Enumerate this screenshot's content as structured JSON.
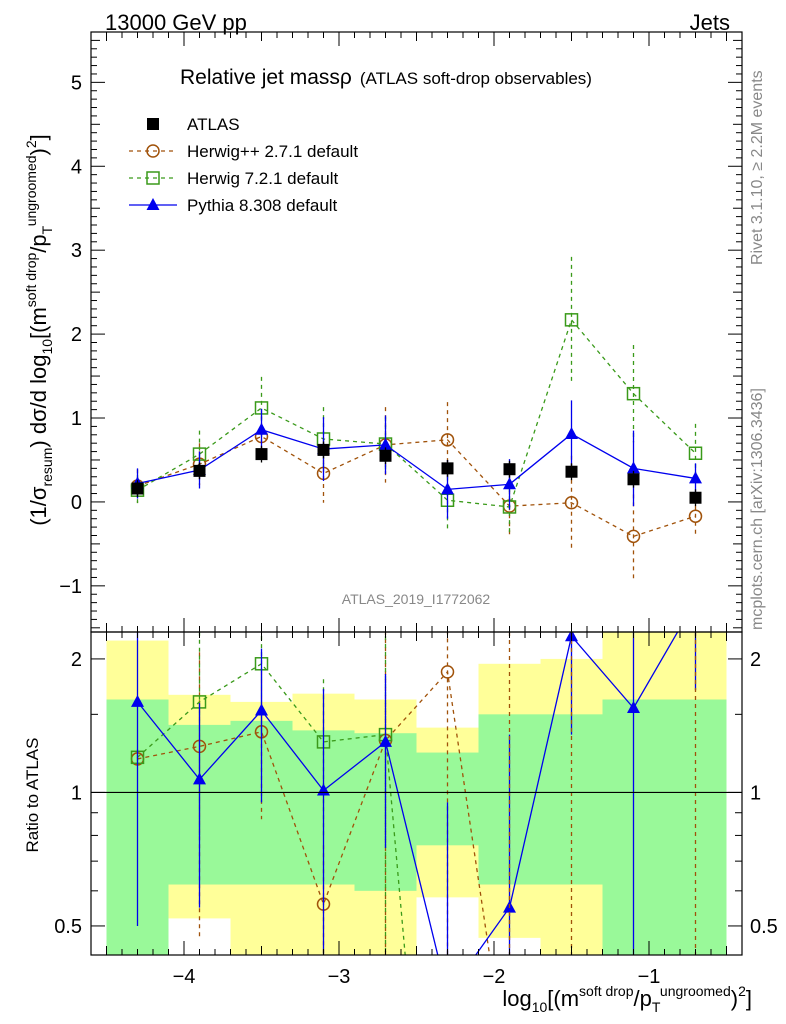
{
  "header": {
    "left": "13000 GeV pp",
    "right": "Jets"
  },
  "side_labels": {
    "rivet": "Rivet 3.1.10, ≥ 2.2M events",
    "mcplots": "mcplots.cern.ch [arXiv:1306.3436]"
  },
  "chart_data": {
    "type": "line",
    "title": "Relative jet massρ",
    "subtitle": "(ATLAS soft-drop observables)",
    "analysis_id": "ATLAS_2019_I1772062",
    "xlabel": {
      "base": "log",
      "sub1": "10",
      "mid": "[(m",
      "sup1": "soft drop",
      "mid2": "/p",
      "sub2": "T",
      "sup2": "ungroomed",
      "tail": ")",
      "sup3": "2",
      "end": "]"
    },
    "ylabel": {
      "pre": "(1/σ",
      "sub1": "resum",
      "mid": ") dσ/d log",
      "sub2": "10",
      "mid2": "[(m",
      "sup1": "soft drop",
      "mid3": "/p",
      "sub3": "T",
      "sup2": "ungroomed",
      "tail": ")",
      "sup3": "2",
      "end": "]"
    },
    "ratio_ylabel": "Ratio to ATLAS",
    "xlim": [
      -4.6,
      -0.4
    ],
    "ylim": [
      -1.55,
      5.6
    ],
    "ratio_ylim": [
      0.43,
      2.3
    ],
    "x_ticks": [
      -4,
      -3,
      -2,
      -1
    ],
    "x_tick_labels": [
      "−4",
      "−3",
      "−2",
      "−1"
    ],
    "y_ticks": [
      -1,
      0,
      1,
      2,
      3,
      4,
      5
    ],
    "y_tick_labels": [
      "−1",
      "0",
      "1",
      "2",
      "3",
      "4",
      "5"
    ],
    "ratio_ticks": [
      0.5,
      1,
      2
    ],
    "ratio_tick_labels": [
      "0.5",
      "1",
      "2"
    ],
    "bins": [
      [
        -4.5,
        -4.1
      ],
      [
        -4.1,
        -3.7
      ],
      [
        -3.7,
        -3.3
      ],
      [
        -3.3,
        -2.9
      ],
      [
        -2.9,
        -2.5
      ],
      [
        -2.5,
        -2.1
      ],
      [
        -2.1,
        -1.7
      ],
      [
        -1.7,
        -1.3
      ],
      [
        -1.3,
        -0.9
      ],
      [
        -0.9,
        -0.5
      ]
    ],
    "x": [
      -4.3,
      -3.9,
      -3.5,
      -3.1,
      -2.7,
      -2.3,
      -1.9,
      -1.5,
      -1.1,
      -0.7
    ],
    "series": [
      {
        "name": "ATLAS",
        "color": "#000000",
        "marker": "filled-square",
        "line": "none",
        "values": [
          0.16,
          0.37,
          0.57,
          0.62,
          0.55,
          0.4,
          0.39,
          0.36,
          0.27,
          0.05
        ],
        "errors": [
          0.1,
          0.1,
          0.1,
          0.1,
          0.1,
          0.1,
          0.1,
          0.1,
          0.1,
          0.1
        ],
        "ratio": [
          1,
          1,
          1,
          1,
          1,
          1,
          1,
          1,
          1,
          1
        ]
      },
      {
        "name": "Herwig++ 2.7.1 default",
        "color": "#a0520a",
        "marker": "open-circle",
        "line": "dashed",
        "values": [
          0.19,
          0.45,
          0.78,
          0.34,
          0.68,
          0.74,
          -0.05,
          -0.01,
          -0.41,
          -0.17
        ],
        "errors": [
          0.2,
          0.25,
          0.25,
          0.35,
          0.45,
          0.45,
          0.38,
          0.56,
          0.5,
          0.22
        ],
        "ratio": [
          1.19,
          1.27,
          1.37,
          0.56,
          1.31,
          1.87,
          null,
          null,
          null,
          null
        ],
        "ratio_errors": [
          0.03,
          0.8,
          0.5,
          0.2,
          1.2,
          1.5,
          null,
          null,
          null,
          null
        ]
      },
      {
        "name": "Herwig 7.2.1 default",
        "color": "#3a9a1a",
        "marker": "open-square",
        "line": "dashed",
        "values": [
          0.14,
          0.57,
          1.12,
          0.75,
          0.69,
          0.02,
          -0.06,
          2.17,
          1.29,
          0.58
        ],
        "errors": [
          0.18,
          0.28,
          0.37,
          0.38,
          0.32,
          0.38,
          0.32,
          0.75,
          0.58,
          0.35
        ],
        "ratio": [
          1.2,
          1.6,
          1.95,
          1.3,
          1.35,
          null,
          null,
          null,
          null,
          null
        ],
        "ratio_errors": [
          0.05,
          0.8,
          0.6,
          0.5,
          1.0,
          null,
          null,
          null,
          null,
          null
        ]
      },
      {
        "name": "Pythia 8.308 default",
        "color": "#0000ee",
        "marker": "filled-triangle",
        "line": "solid",
        "values": [
          0.22,
          0.38,
          0.86,
          0.63,
          0.68,
          0.15,
          0.21,
          0.81,
          0.4,
          0.28
        ],
        "errors": [
          0.18,
          0.22,
          0.25,
          0.38,
          0.35,
          0.35,
          0.3,
          0.4,
          0.45,
          0.18
        ],
        "ratio": [
          1.6,
          1.07,
          1.53,
          1.01,
          1.3,
          0.35,
          0.55,
          2.25,
          1.55,
          2.7
        ],
        "ratio_errors": [
          1.1,
          0.52,
          0.58,
          0.7,
          0.55,
          0.6,
          0.8,
          0.9,
          1.2,
          1.0
        ]
      }
    ],
    "bands": {
      "inner_color": "#99f999",
      "outer_color": "#ffff99",
      "inner": [
        [
          0.38,
          1.62
        ],
        [
          0.62,
          1.42
        ],
        [
          0.62,
          1.45
        ],
        [
          0.62,
          1.38
        ],
        [
          0.6,
          1.36
        ],
        [
          0.76,
          1.23
        ],
        [
          0.62,
          1.5
        ],
        [
          0.62,
          1.5
        ],
        [
          0.38,
          1.62
        ],
        [
          0.38,
          1.62
        ]
      ],
      "outer": [
        [
          0.38,
          2.2
        ],
        [
          0.52,
          1.66
        ],
        [
          0.43,
          1.6
        ],
        [
          0.43,
          1.67
        ],
        [
          0.43,
          1.62
        ],
        [
          0.58,
          1.4
        ],
        [
          0.47,
          1.95
        ],
        [
          0.38,
          2.0
        ],
        [
          0.38,
          2.4
        ],
        [
          0.38,
          2.5
        ]
      ]
    }
  }
}
